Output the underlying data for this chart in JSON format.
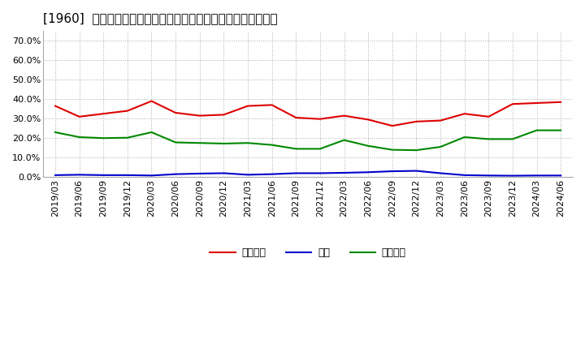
{
  "title": "[1960]  売上債権、在庫、買入債務の総資産に対する比率の推移",
  "x_labels": [
    "2019/03",
    "2019/06",
    "2019/09",
    "2019/12",
    "2020/03",
    "2020/06",
    "2020/09",
    "2020/12",
    "2021/03",
    "2021/06",
    "2021/09",
    "2021/12",
    "2022/03",
    "2022/06",
    "2022/09",
    "2022/12",
    "2023/03",
    "2023/06",
    "2023/09",
    "2023/12",
    "2024/03",
    "2024/06"
  ],
  "receivables": [
    0.365,
    0.31,
    0.325,
    0.34,
    0.39,
    0.33,
    0.315,
    0.32,
    0.365,
    0.37,
    0.305,
    0.298,
    0.315,
    0.295,
    0.263,
    0.285,
    0.29,
    0.325,
    0.31,
    0.375,
    0.38,
    0.385
  ],
  "inventory": [
    0.01,
    0.012,
    0.01,
    0.01,
    0.008,
    0.015,
    0.018,
    0.02,
    0.012,
    0.015,
    0.02,
    0.02,
    0.022,
    0.025,
    0.03,
    0.032,
    0.02,
    0.01,
    0.008,
    0.007,
    0.008,
    0.008
  ],
  "payables": [
    0.23,
    0.205,
    0.2,
    0.202,
    0.23,
    0.178,
    0.175,
    0.172,
    0.175,
    0.165,
    0.145,
    0.145,
    0.19,
    0.16,
    0.14,
    0.138,
    0.155,
    0.205,
    0.195,
    0.195,
    0.24,
    0.24
  ],
  "receivables_color": "#dd0000",
  "inventory_color": "#0000cc",
  "payables_color": "#008800",
  "bg_color": "#ffffff",
  "plot_bg_color": "#ffffff",
  "grid_color": "#999999",
  "ylim": [
    0.0,
    0.75
  ],
  "yticks": [
    0.0,
    0.1,
    0.2,
    0.3,
    0.4,
    0.5,
    0.6,
    0.7
  ],
  "legend_labels": [
    "売上債権",
    "在庫",
    "買入債務"
  ],
  "title_fontsize": 11,
  "axis_fontsize": 8,
  "legend_fontsize": 9
}
